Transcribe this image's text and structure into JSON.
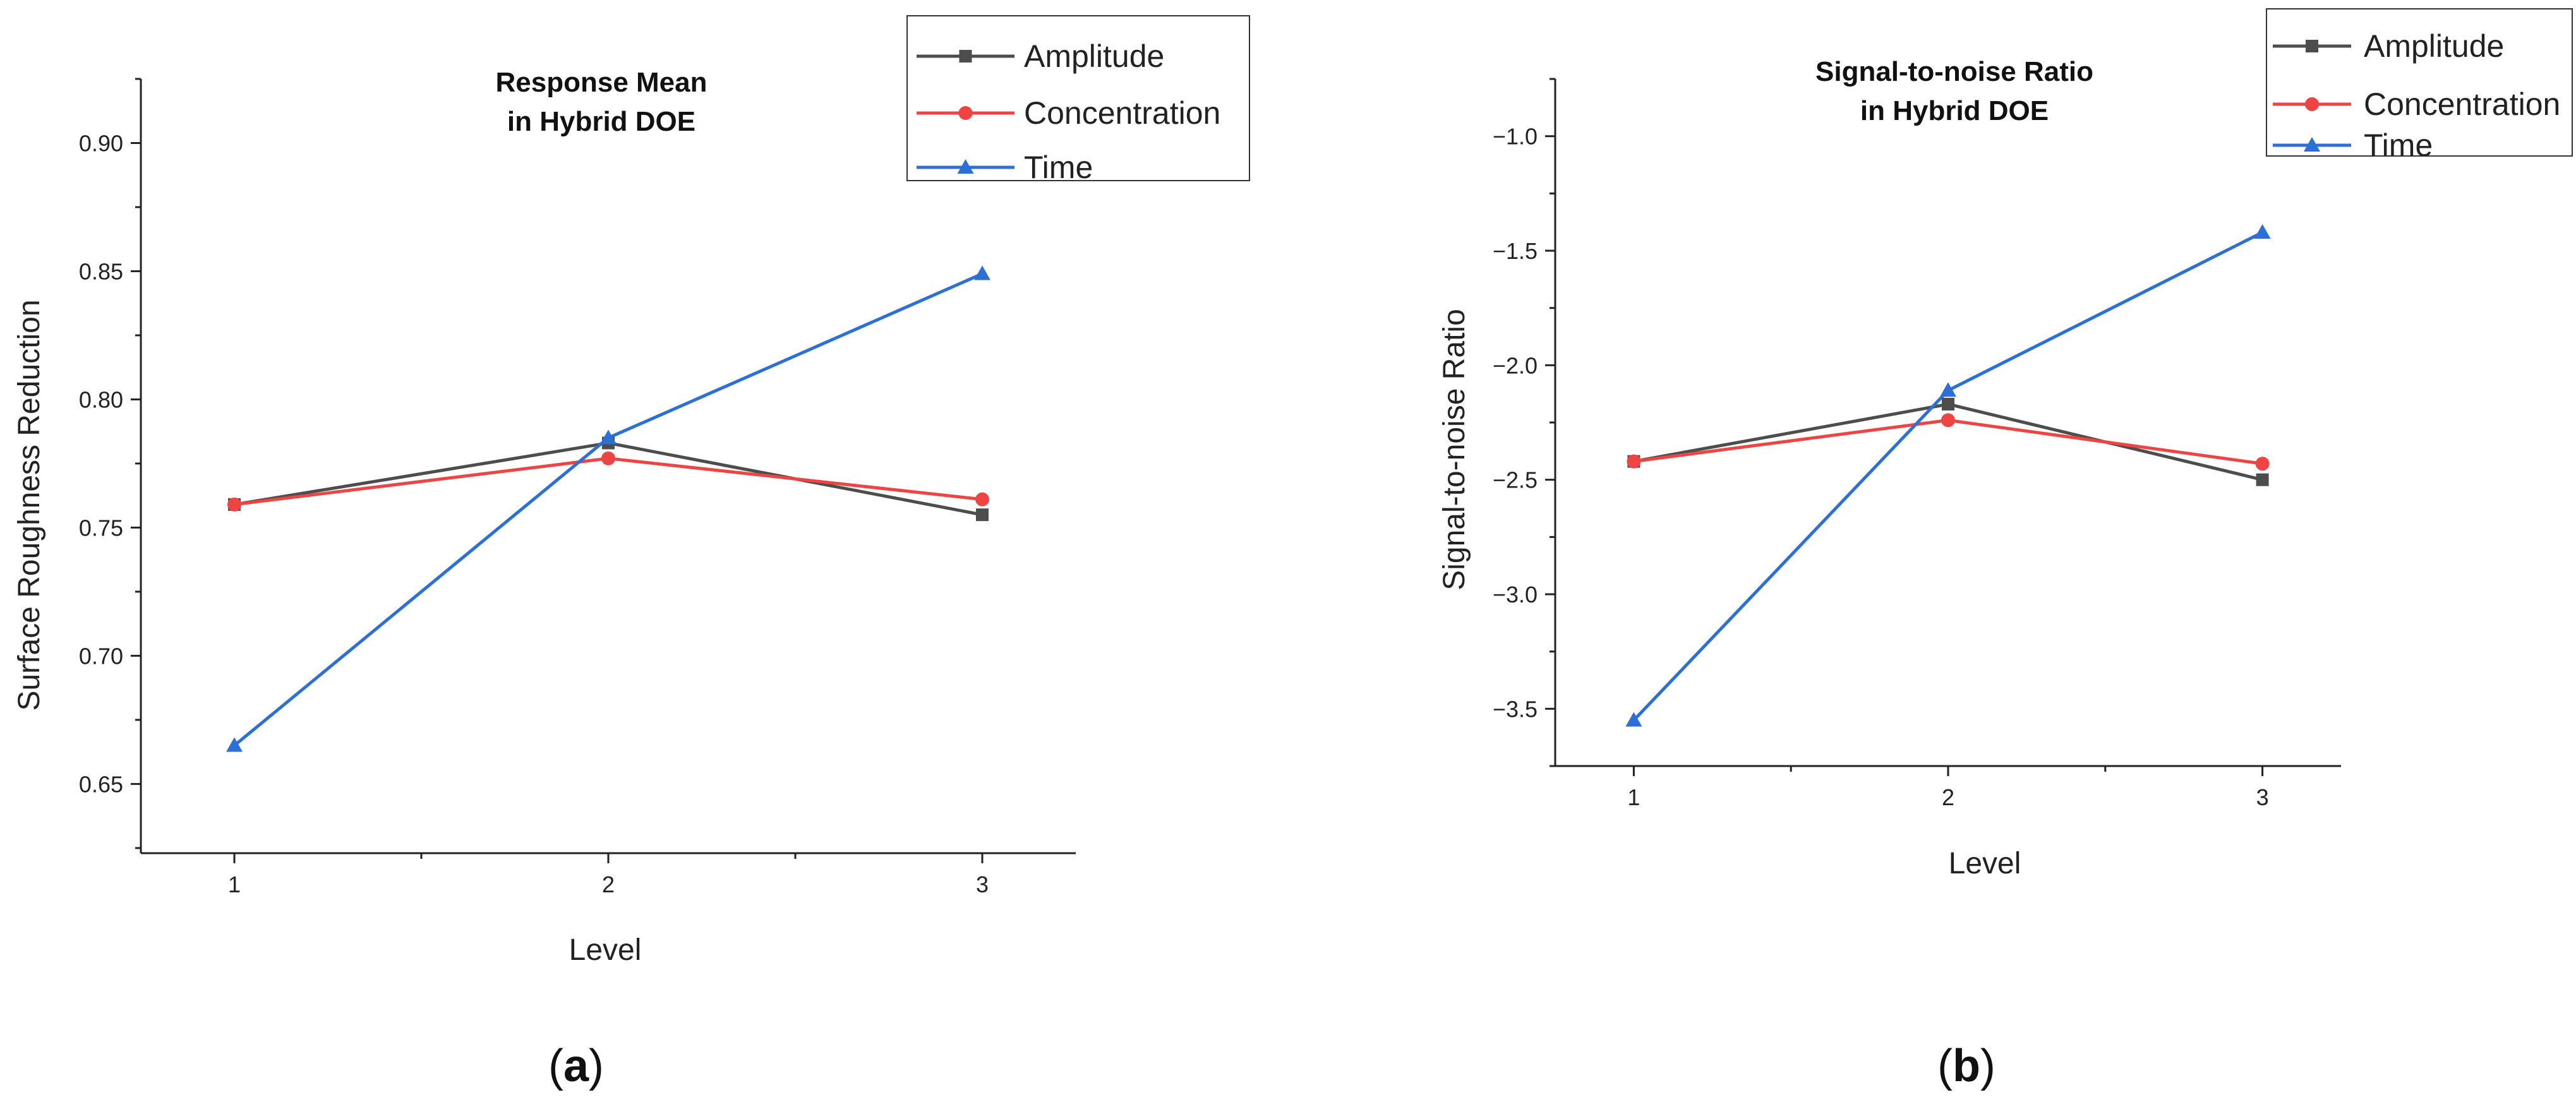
{
  "chart_data": [
    {
      "type": "line",
      "panel_label": "a",
      "title": [
        "Response Mean",
        "in Hybrid DOE"
      ],
      "xlabel": "Level",
      "ylabel": "Surface Roughness Reduction",
      "x": [
        1,
        2,
        3
      ],
      "x_tick_labels": [
        "1",
        "2",
        "3"
      ],
      "y_ticks": [
        0.65,
        0.7,
        0.75,
        0.8,
        0.85,
        0.9
      ],
      "y_tick_labels": [
        "0.65",
        "0.70",
        "0.75",
        "0.80",
        "0.85",
        "0.90"
      ],
      "xlim": [
        0.75,
        3.25
      ],
      "ylim": [
        0.623,
        0.925
      ],
      "legend_position": "top-right",
      "series": [
        {
          "name": "Amplitude",
          "color": "#4d4d4d",
          "marker": "square",
          "values": [
            0.759,
            0.783,
            0.755
          ]
        },
        {
          "name": "Concentration",
          "color": "#ef4444",
          "marker": "circle",
          "values": [
            0.759,
            0.777,
            0.761
          ]
        },
        {
          "name": "Time",
          "color": "#2c6fd6",
          "marker": "triangle",
          "values": [
            0.665,
            0.785,
            0.849
          ]
        }
      ]
    },
    {
      "type": "line",
      "panel_label": "b",
      "title": [
        "Signal-to-noise Ratio",
        "in Hybrid DOE"
      ],
      "xlabel": "Level",
      "ylabel": "Signal-to-noise Ratio",
      "x": [
        1,
        2,
        3
      ],
      "x_tick_labels": [
        "1",
        "2",
        "3"
      ],
      "y_ticks": [
        -3.5,
        -3.0,
        -2.5,
        -2.0,
        -1.5,
        -1.0
      ],
      "y_tick_labels": [
        "−3.5",
        "−3.0",
        "−2.5",
        "−2.0",
        "−1.5",
        "−1.0"
      ],
      "xlim": [
        0.75,
        3.25
      ],
      "ylim": [
        -3.75,
        -0.75
      ],
      "legend_position": "top-right",
      "series": [
        {
          "name": "Amplitude",
          "color": "#4d4d4d",
          "marker": "square",
          "values": [
            -2.42,
            -2.17,
            -2.5
          ]
        },
        {
          "name": "Concentration",
          "color": "#ef4444",
          "marker": "circle",
          "values": [
            -2.42,
            -2.24,
            -2.43
          ]
        },
        {
          "name": "Time",
          "color": "#2c6fd6",
          "marker": "triangle",
          "values": [
            -3.55,
            -2.11,
            -1.42
          ]
        }
      ]
    }
  ]
}
